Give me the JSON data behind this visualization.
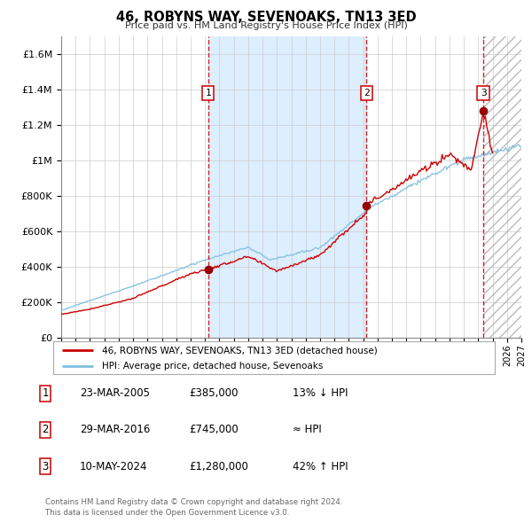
{
  "title": "46, ROBYNS WAY, SEVENOAKS, TN13 3ED",
  "subtitle": "Price paid vs. HM Land Registry's House Price Index (HPI)",
  "xlim": [
    1995,
    2027
  ],
  "ylim": [
    0,
    1700000
  ],
  "yticks": [
    0,
    200000,
    400000,
    600000,
    800000,
    1000000,
    1200000,
    1400000,
    1600000
  ],
  "ytick_labels": [
    "£0",
    "£200K",
    "£400K",
    "£600K",
    "£800K",
    "£1M",
    "£1.2M",
    "£1.4M",
    "£1.6M"
  ],
  "xticks": [
    1995,
    1996,
    1997,
    1998,
    1999,
    2000,
    2001,
    2002,
    2003,
    2004,
    2005,
    2006,
    2007,
    2008,
    2009,
    2010,
    2011,
    2012,
    2013,
    2014,
    2015,
    2016,
    2017,
    2018,
    2019,
    2020,
    2021,
    2022,
    2023,
    2024,
    2025,
    2026,
    2027
  ],
  "sale_dates": [
    2005.22,
    2016.24,
    2024.36
  ],
  "sale_prices": [
    385000,
    745000,
    1280000
  ],
  "sale_labels": [
    "1",
    "2",
    "3"
  ],
  "hpi_color": "#7fbfdf",
  "price_color": "#cc0000",
  "sale_dot_color": "#990000",
  "vline_color": "#cc0000",
  "shade_color": "#ddeeff",
  "grid_color": "#cccccc",
  "bg_color": "#ffffff",
  "legend_label_price": "46, ROBYNS WAY, SEVENOAKS, TN13 3ED (detached house)",
  "legend_label_hpi": "HPI: Average price, detached house, Sevenoaks",
  "table_rows": [
    [
      "1",
      "23-MAR-2005",
      "£385,000",
      "13% ↓ HPI"
    ],
    [
      "2",
      "29-MAR-2016",
      "£745,000",
      "≈ HPI"
    ],
    [
      "3",
      "10-MAY-2024",
      "£1,280,000",
      "42% ↑ HPI"
    ]
  ],
  "footer": "Contains HM Land Registry data © Crown copyright and database right 2024.\nThis data is licensed under the Open Government Licence v3.0."
}
